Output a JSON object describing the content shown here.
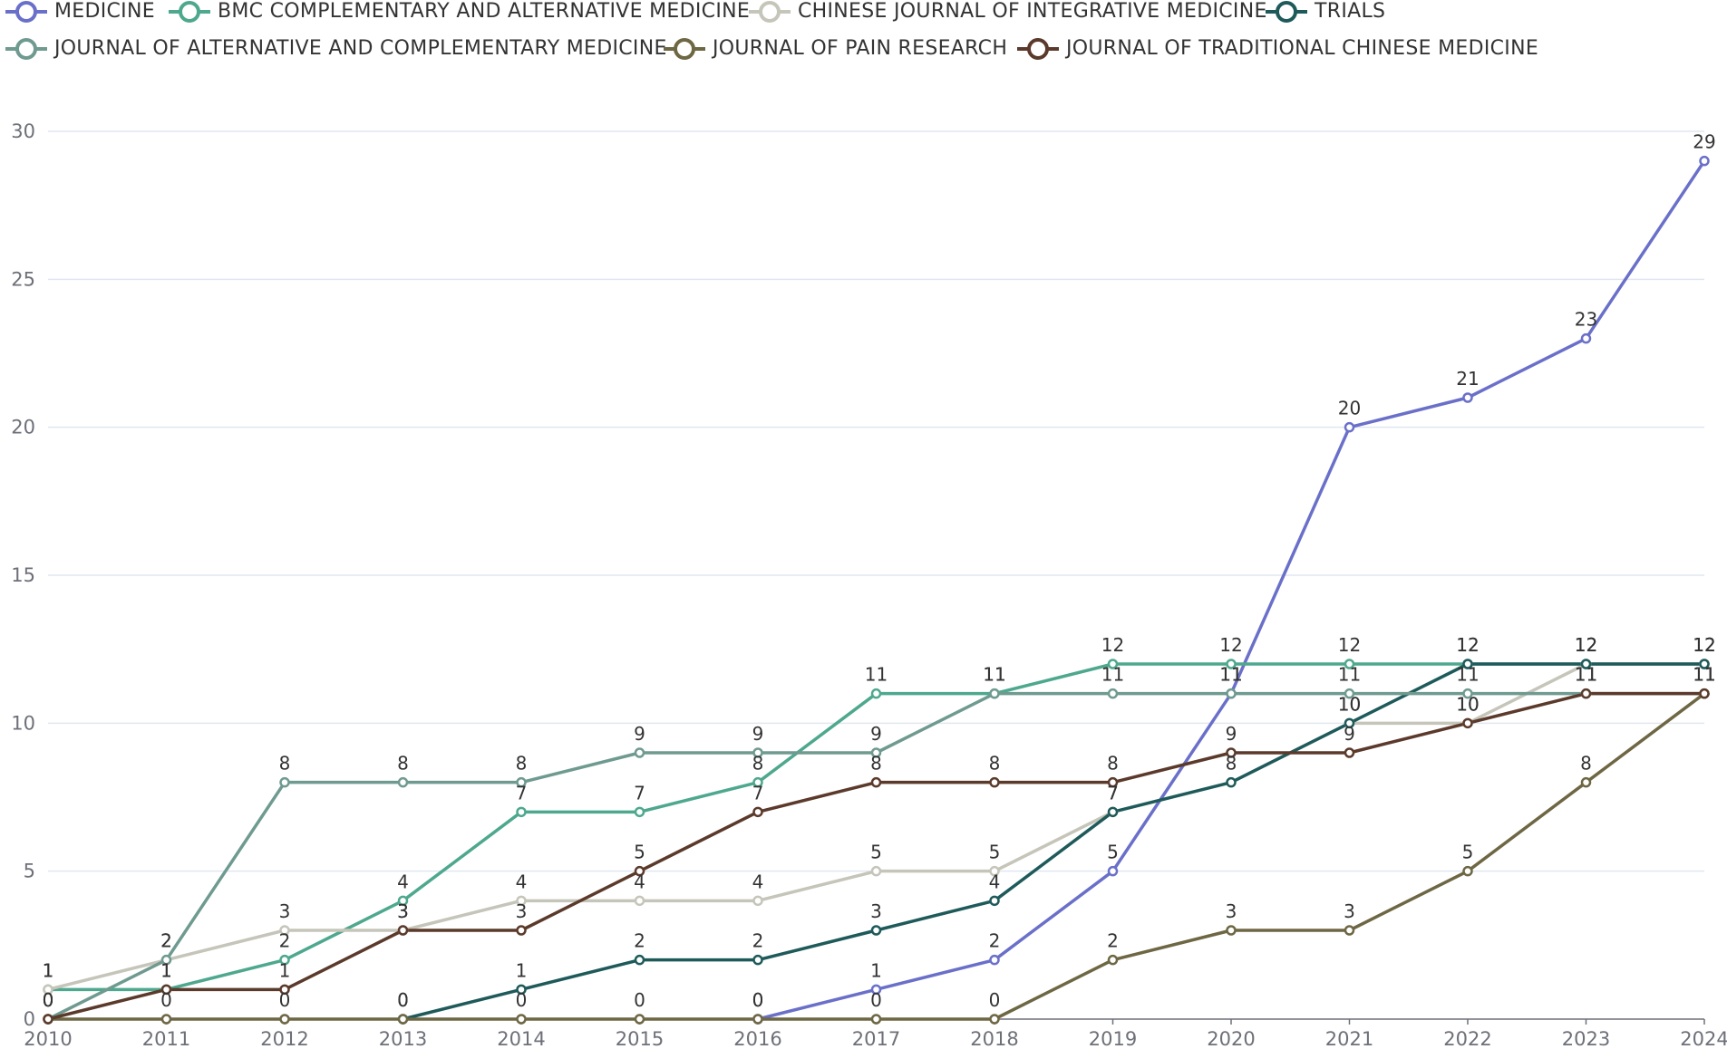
{
  "chart_data": {
    "type": "line",
    "title": "",
    "xlabel": "",
    "ylabel": "",
    "x": [
      "2010",
      "2011",
      "2012",
      "2013",
      "2014",
      "2015",
      "2016",
      "2017",
      "2018",
      "2019",
      "2020",
      "2021",
      "2022",
      "2023",
      "2024"
    ],
    "ylim": [
      0,
      30
    ],
    "yticks": [
      0,
      5,
      10,
      15,
      20,
      25,
      30
    ],
    "grid": true,
    "legend_position": "top",
    "series": [
      {
        "name": "MEDICINE",
        "color": "#6a70c9",
        "values": [
          null,
          null,
          null,
          null,
          null,
          null,
          0,
          1,
          2,
          5,
          11,
          20,
          21,
          23,
          29
        ]
      },
      {
        "name": "BMC COMPLEMENTARY AND ALTERNATIVE MEDICINE",
        "color": "#4ea88e",
        "values": [
          1,
          1,
          2,
          4,
          7,
          7,
          8,
          11,
          11,
          12,
          12,
          12,
          12,
          12,
          12
        ]
      },
      {
        "name": "CHINESE JOURNAL OF INTEGRATIVE MEDICINE",
        "color": "#c6c5ba",
        "values": [
          1,
          2,
          3,
          3,
          4,
          4,
          4,
          5,
          5,
          7,
          null,
          10,
          10,
          12,
          12
        ]
      },
      {
        "name": "TRIALS",
        "color": "#1f5a5a",
        "values": [
          null,
          null,
          null,
          0,
          1,
          2,
          2,
          3,
          4,
          7,
          8,
          10,
          12,
          12,
          12
        ]
      },
      {
        "name": "JOURNAL OF ALTERNATIVE AND COMPLEMENTARY MEDICINE",
        "color": "#6f9a90",
        "values": [
          0,
          2,
          8,
          8,
          8,
          9,
          9,
          9,
          11,
          11,
          11,
          11,
          11,
          11,
          11
        ]
      },
      {
        "name": "JOURNAL OF PAIN RESEARCH",
        "color": "#6e6744",
        "values": [
          0,
          0,
          0,
          0,
          0,
          0,
          0,
          0,
          0,
          2,
          3,
          3,
          5,
          8,
          11
        ]
      },
      {
        "name": "JOURNAL OF TRADITIONAL CHINESE MEDICINE",
        "color": "#5b3a2b",
        "values": [
          0,
          1,
          1,
          3,
          3,
          5,
          7,
          8,
          8,
          8,
          9,
          9,
          10,
          11,
          11
        ]
      }
    ]
  }
}
